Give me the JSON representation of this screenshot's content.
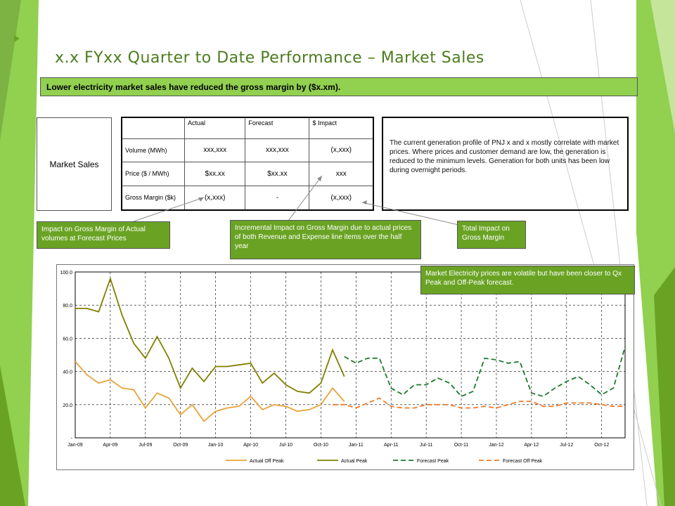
{
  "slide": {
    "title": "x.x FYxx Quarter to Date Performance – Market Sales",
    "banner": "Lower electricity market sales have reduced the gross margin by ($x.xm).",
    "market_sales_label": "Market Sales",
    "commentary": "The current generation profile of PNJ x and x mostly correlate with market prices. Where prices and customer demand are low, the generation is reduced to the minimum levels. Generation for both units has been low during overnight periods."
  },
  "table": {
    "headers": [
      "",
      "Actual",
      "Forecast",
      "$ Impact"
    ],
    "rows": [
      {
        "label": "Volume (MWh)",
        "actual": "xxx,xxx",
        "forecast": "xxx,xxx",
        "impact": "(x,xxx)"
      },
      {
        "label": "Price ($ / MWh)",
        "actual": "$xx.xx",
        "forecast": "$xx.xx",
        "impact": "xxx"
      },
      {
        "label": "Gross Margin ($k)",
        "actual": "(x,xxx)",
        "forecast": "-",
        "impact": "(x,xxx)"
      }
    ]
  },
  "callouts": {
    "impact_forecast_prices": "Impact on Gross Margin of Actual volumes at Forecast Prices",
    "incremental_impact": "Incremental Impact on Gross Margin due to actual prices of both Revenue and Expense line items over the half year",
    "total_impact": "Total Impact on Gross Margin",
    "volatility_note": "Market Electricity prices are volatile but have been closer to Qx Peak and Off-Peak forecast."
  },
  "colors": {
    "accent_green": "#92d050",
    "callout_green": "#6aa324",
    "title_green": "#4d7b1f",
    "actual_off_peak": "#e8a33a",
    "actual_peak": "#808000",
    "forecast_peak": "#1e7a2e",
    "forecast_off_peak": "#f07c2a"
  },
  "chart_data": {
    "type": "line",
    "x": [
      "Jan-09",
      "Feb-09",
      "Mar-09",
      "Apr-09",
      "May-09",
      "Jun-09",
      "Jul-09",
      "Aug-09",
      "Sep-09",
      "Oct-09",
      "Nov-09",
      "Dec-09",
      "Jan-10",
      "Feb-10",
      "Mar-10",
      "Apr-10",
      "May-10",
      "Jun-10",
      "Jul-10",
      "Aug-10",
      "Sep-10",
      "Oct-10",
      "Nov-10",
      "Dec-10",
      "Jan-11",
      "Feb-11",
      "Mar-11",
      "Apr-11",
      "May-11",
      "Jun-11",
      "Jul-11",
      "Aug-11",
      "Sep-11",
      "Oct-11",
      "Nov-11",
      "Dec-11",
      "Jan-12",
      "Feb-12",
      "Mar-12",
      "Apr-12",
      "May-12",
      "Jun-12",
      "Jul-12",
      "Aug-12",
      "Sep-12",
      "Oct-12",
      "Nov-12",
      "Dec-12"
    ],
    "tick_labels": [
      "Jan-09",
      "Apr-09",
      "Jul-09",
      "Oct-09",
      "Jan-10",
      "Apr-10",
      "Jul-10",
      "Oct-10",
      "Jan-11",
      "Apr-11",
      "Jul-11",
      "Oct-11",
      "Jan-12",
      "Apr-12",
      "Jul-12",
      "Oct-12"
    ],
    "y_tick_labels": [
      "-",
      "20.0",
      "40.0",
      "60.0",
      "80.0",
      "100.0"
    ],
    "ylim": [
      0,
      100
    ],
    "grid": true,
    "legend_position": "bottom",
    "series": [
      {
        "name": "Actual Off Peak",
        "color": "#e8a33a",
        "dash": false,
        "values": [
          46,
          38,
          33,
          35,
          30,
          29,
          18,
          27,
          24,
          14,
          20,
          10,
          16,
          18,
          19,
          25,
          17,
          20,
          19,
          16,
          17,
          20,
          30,
          22,
          null,
          null,
          null,
          null,
          null,
          null,
          null,
          null,
          null,
          null,
          null,
          null,
          null,
          null,
          null,
          null,
          null,
          null,
          null,
          null,
          null,
          null,
          null,
          null
        ]
      },
      {
        "name": "Actual Peak",
        "color": "#808000",
        "dash": false,
        "values": [
          78,
          78,
          76,
          96,
          74,
          57,
          48,
          61,
          48,
          30,
          42,
          34,
          43,
          43,
          44,
          45,
          33,
          39,
          32,
          28,
          27,
          33,
          53,
          37,
          null,
          null,
          null,
          null,
          null,
          null,
          null,
          null,
          null,
          null,
          null,
          null,
          null,
          null,
          null,
          null,
          null,
          null,
          null,
          null,
          null,
          null,
          null,
          null
        ]
      },
      {
        "name": "Forecast Peak",
        "color": "#1e7a2e",
        "dash": true,
        "values": [
          null,
          null,
          null,
          null,
          null,
          null,
          null,
          null,
          null,
          null,
          null,
          null,
          null,
          null,
          null,
          null,
          null,
          null,
          null,
          null,
          null,
          null,
          null,
          49,
          45,
          48,
          48,
          30,
          26,
          32,
          32,
          36,
          33,
          25,
          28,
          48,
          47,
          45,
          46,
          27,
          25,
          30,
          34,
          37,
          32,
          26,
          30,
          55
        ]
      },
      {
        "name": "Forecast Off Peak",
        "color": "#f07c2a",
        "dash": true,
        "values": [
          null,
          null,
          null,
          null,
          null,
          null,
          null,
          null,
          null,
          null,
          null,
          null,
          null,
          null,
          null,
          null,
          null,
          null,
          null,
          null,
          null,
          null,
          20,
          20,
          18,
          21,
          24,
          19,
          18,
          18,
          20,
          20,
          20,
          18,
          18,
          19,
          18,
          20,
          22,
          22,
          19,
          19,
          21,
          21,
          21,
          20,
          19,
          19
        ]
      }
    ]
  }
}
